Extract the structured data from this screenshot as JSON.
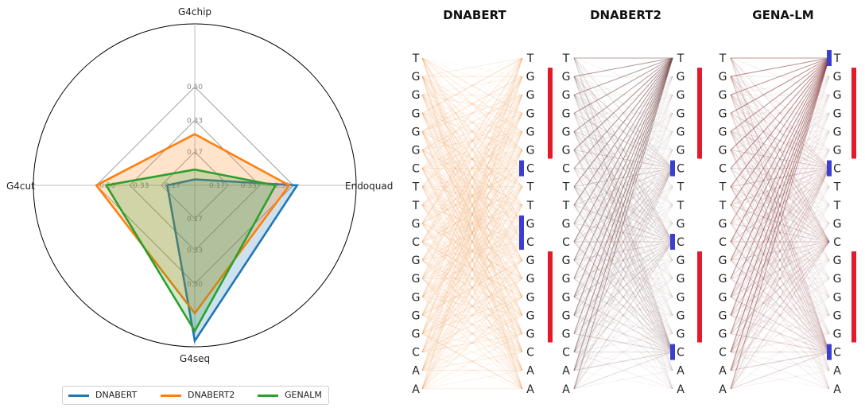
{
  "radar": {
    "chart_data": {
      "type": "radar",
      "axes": [
        "G4chip",
        "Endoquad",
        "G4seq",
        "G4cut"
      ],
      "ticks": [
        "0.17",
        "0.33",
        "0.50"
      ],
      "tick_values": [
        0.17,
        0.33,
        0.5
      ],
      "rmax": 0.82,
      "series": [
        {
          "name": "DNABERT",
          "color": "#1f77b4",
          "values": [
            0.03,
            0.52,
            0.79,
            0.14
          ]
        },
        {
          "name": "DNABERT2",
          "color": "#ff7f0e",
          "values": [
            0.26,
            0.48,
            0.65,
            0.5
          ]
        },
        {
          "name": "GENALM",
          "color": "#2ca02c",
          "values": [
            0.08,
            0.41,
            0.74,
            0.45
          ]
        }
      ]
    }
  },
  "attention": {
    "chart_data": {
      "type": "attention-map",
      "sequence": [
        "T",
        "G",
        "G",
        "G",
        "G",
        "G",
        "C",
        "T",
        "T",
        "G",
        "C",
        "G",
        "G",
        "G",
        "G",
        "G",
        "C",
        "A",
        "A"
      ],
      "panels": [
        {
          "title": "DNABERT",
          "line_color": "#f0a05a",
          "right_sequence": [
            "T",
            "G",
            "G",
            "G",
            "G",
            "G",
            "C",
            "T",
            "T",
            "G",
            "C",
            "G",
            "G",
            "G",
            "G",
            "G",
            "C",
            "A",
            "A"
          ],
          "red_bars": [
            [
              1,
              5
            ],
            [
              11,
              15
            ]
          ],
          "blue_bars": [
            [
              6,
              6
            ],
            [
              9,
              10
            ]
          ]
        },
        {
          "title": "DNABERT2",
          "line_color": "#7a5050",
          "right_sequence": [
            "T",
            "G",
            "G",
            "G",
            "G",
            "G",
            "C",
            "T",
            "T",
            "G",
            "C",
            "G",
            "G",
            "G",
            "G",
            "G",
            "C",
            "A",
            "A"
          ],
          "red_bars": [
            [
              1,
              5
            ],
            [
              11,
              15
            ]
          ],
          "blue_bars": [
            [
              6,
              6
            ],
            [
              10,
              10
            ],
            [
              16,
              16
            ]
          ]
        },
        {
          "title": "GENA-LM",
          "line_color": "#8a4040",
          "right_sequence": [
            "T",
            "G",
            "G",
            "G",
            "G",
            "G",
            "C",
            "T",
            "T",
            "G",
            "C",
            "G",
            "G",
            "G",
            "G",
            "G",
            "C",
            "A",
            "A"
          ],
          "red_bars": [
            [
              1,
              5
            ],
            [
              11,
              15
            ]
          ],
          "blue_bars": [
            [
              0,
              0
            ],
            [
              6,
              6
            ],
            [
              16,
              16
            ]
          ]
        }
      ]
    }
  }
}
